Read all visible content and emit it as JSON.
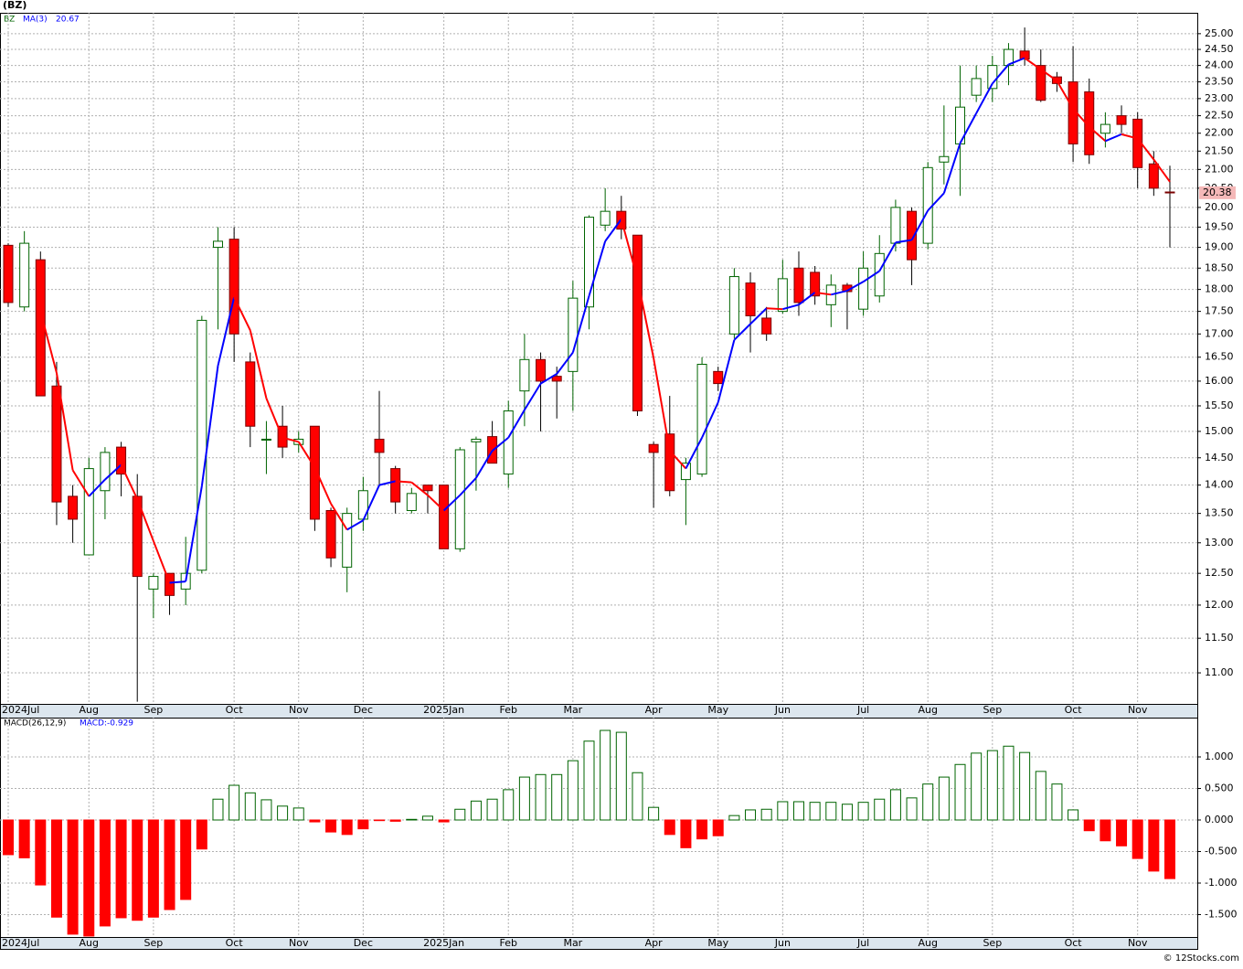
{
  "title": "(BZ)",
  "credit": "© 12Stocks.com",
  "chart_data": [
    {
      "type": "candlestick",
      "name": "BZ",
      "log_scale": true,
      "grid": true,
      "up_color": "#006400",
      "down_color": "#ff0000",
      "categories": [
        "2024Jul",
        null,
        null,
        null,
        null,
        "Aug",
        null,
        null,
        null,
        "Sep",
        null,
        null,
        null,
        null,
        "Oct",
        null,
        null,
        null,
        "Nov",
        null,
        null,
        null,
        "Dec",
        null,
        null,
        null,
        null,
        "2025Jan",
        null,
        null,
        null,
        "Feb",
        null,
        null,
        null,
        "Mar",
        null,
        null,
        null,
        null,
        "Apr",
        null,
        null,
        null,
        "May",
        null,
        null,
        null,
        "Jun",
        null,
        null,
        null,
        null,
        "Jul",
        null,
        null,
        null,
        "Aug",
        null,
        null,
        null,
        "Sep",
        null,
        null,
        null,
        null,
        "Oct",
        null,
        null,
        null,
        "Nov",
        null,
        null
      ],
      "open": [
        19.05,
        17.6,
        18.7,
        15.9,
        13.8,
        12.8,
        13.9,
        14.7,
        13.8,
        12.25,
        12.5,
        12.25,
        12.55,
        19.0,
        19.2,
        16.4,
        14.85,
        15.1,
        14.75,
        15.1,
        13.55,
        12.6,
        13.4,
        14.85,
        14.3,
        13.55,
        14.0,
        14.0,
        12.9,
        14.8,
        14.9,
        14.2,
        15.8,
        16.45,
        16.1,
        16.2,
        17.6,
        19.55,
        19.9,
        19.3,
        14.75,
        14.95,
        14.1,
        14.2,
        16.2,
        17.0,
        18.15,
        17.35,
        17.5,
        18.5,
        18.4,
        17.65,
        18.1,
        17.55,
        17.85,
        19.1,
        19.9,
        19.1,
        21.2,
        21.7,
        23.1,
        23.3,
        24.0,
        24.45,
        24.0,
        23.65,
        23.5,
        23.2,
        22.0,
        22.5,
        22.4,
        21.15,
        20.4
      ],
      "high": [
        19.1,
        19.4,
        18.9,
        16.4,
        14.0,
        14.5,
        14.7,
        14.8,
        14.2,
        12.5,
        12.5,
        13.1,
        17.4,
        19.5,
        19.5,
        16.6,
        15.2,
        15.5,
        15.0,
        15.1,
        13.6,
        13.6,
        14.15,
        15.8,
        14.35,
        13.95,
        14.0,
        14.0,
        14.7,
        14.9,
        15.2,
        15.6,
        17.0,
        16.6,
        16.3,
        18.2,
        19.8,
        20.5,
        20.3,
        19.3,
        14.8,
        15.7,
        14.5,
        16.5,
        16.3,
        18.5,
        18.4,
        17.6,
        18.7,
        18.9,
        18.55,
        18.35,
        18.15,
        18.9,
        19.3,
        20.2,
        20.0,
        21.2,
        22.8,
        24.0,
        24.0,
        24.3,
        24.7,
        25.2,
        24.5,
        23.8,
        24.6,
        23.6,
        22.6,
        22.8,
        22.6,
        21.5,
        21.1
      ],
      "low": [
        17.6,
        17.5,
        15.7,
        13.3,
        13.0,
        12.8,
        13.4,
        13.8,
        10.6,
        11.8,
        11.85,
        12.0,
        12.5,
        17.1,
        16.4,
        14.7,
        14.2,
        14.5,
        14.6,
        13.2,
        12.6,
        12.2,
        13.2,
        14.0,
        13.5,
        13.5,
        13.5,
        12.9,
        12.85,
        13.9,
        14.4,
        13.95,
        15.1,
        15.0,
        15.25,
        15.4,
        17.1,
        19.4,
        19.2,
        15.3,
        13.6,
        13.8,
        13.3,
        14.15,
        15.8,
        16.9,
        16.6,
        16.85,
        17.45,
        17.4,
        17.65,
        17.15,
        17.1,
        17.4,
        17.7,
        18.9,
        18.1,
        18.95,
        20.6,
        20.3,
        22.9,
        22.9,
        23.4,
        24.0,
        22.9,
        23.2,
        21.2,
        21.15,
        21.6,
        22.0,
        20.5,
        20.3,
        19.0
      ],
      "close": [
        17.7,
        19.1,
        15.7,
        13.7,
        13.4,
        14.3,
        14.6,
        14.2,
        12.45,
        12.45,
        12.15,
        12.5,
        17.3,
        19.15,
        17.0,
        15.1,
        14.85,
        14.7,
        14.85,
        13.4,
        12.75,
        13.5,
        13.9,
        14.6,
        13.7,
        13.85,
        13.9,
        12.9,
        14.65,
        14.85,
        14.4,
        15.4,
        16.45,
        16.0,
        16.0,
        17.8,
        19.75,
        19.9,
        19.45,
        15.4,
        14.6,
        13.9,
        14.4,
        16.35,
        15.95,
        18.3,
        17.4,
        17.0,
        18.25,
        17.7,
        17.85,
        18.1,
        17.95,
        18.5,
        18.85,
        20.0,
        18.7,
        21.05,
        21.35,
        22.75,
        23.6,
        24.0,
        24.5,
        24.2,
        22.95,
        23.45,
        21.7,
        21.4,
        22.25,
        22.25,
        21.05,
        20.5,
        20.38
      ],
      "ma": {
        "name": "MA(3)",
        "color": "#0000ff",
        "rising_color": "#0000ff",
        "falling_color": "#ff0000",
        "values": [
          null,
          null,
          17.5,
          16.17,
          14.27,
          13.8,
          14.1,
          14.37,
          13.75,
          13.03,
          12.35,
          12.37,
          13.98,
          16.32,
          17.82,
          17.08,
          15.65,
          14.88,
          14.8,
          14.32,
          13.67,
          13.22,
          13.38,
          14.0,
          14.07,
          14.05,
          13.82,
          13.55,
          13.82,
          14.13,
          14.63,
          14.88,
          15.42,
          15.95,
          16.15,
          16.6,
          17.85,
          19.15,
          19.7,
          18.25,
          16.48,
          14.63,
          14.3,
          14.88,
          15.57,
          16.87,
          17.22,
          17.57,
          17.55,
          17.65,
          17.93,
          17.88,
          17.97,
          18.18,
          18.43,
          19.12,
          19.18,
          19.92,
          20.37,
          21.72,
          22.57,
          23.45,
          24.03,
          24.23,
          23.88,
          23.53,
          22.7,
          22.18,
          21.78,
          21.97,
          21.85,
          21.27,
          20.67
        ]
      },
      "ylim": [
        10.57,
        25.68
      ],
      "yticks": [
        {
          "value": 11,
          "label": "11.00"
        },
        {
          "value": 11.5,
          "label": "11.50"
        },
        {
          "value": 12,
          "label": "12.00"
        },
        {
          "value": 12.5,
          "label": "12.50"
        },
        {
          "value": 13,
          "label": "13.00"
        },
        {
          "value": 13.5,
          "label": "13.50"
        },
        {
          "value": 14,
          "label": "14.00"
        },
        {
          "value": 14.5,
          "label": "14.50"
        },
        {
          "value": 15,
          "label": "15.00"
        },
        {
          "value": 15.5,
          "label": "15.50"
        },
        {
          "value": 16,
          "label": "16.00"
        },
        {
          "value": 16.5,
          "label": "16.50"
        },
        {
          "value": 17,
          "label": "17.00"
        },
        {
          "value": 17.5,
          "label": "17.50"
        },
        {
          "value": 18,
          "label": "18.00"
        },
        {
          "value": 18.5,
          "label": "18.50"
        },
        {
          "value": 19,
          "label": "19.00"
        },
        {
          "value": 19.5,
          "label": "19.50"
        },
        {
          "value": 20,
          "label": "20.00"
        },
        {
          "value": 20.5,
          "label": "20.50"
        },
        {
          "value": 21,
          "label": "21.00"
        },
        {
          "value": 21.5,
          "label": "21.50"
        },
        {
          "value": 22,
          "label": "22.00"
        },
        {
          "value": 22.5,
          "label": "22.50"
        },
        {
          "value": 23,
          "label": "23.00"
        },
        {
          "value": 23.5,
          "label": "23.50"
        },
        {
          "value": 24,
          "label": "24.00"
        },
        {
          "value": 24.5,
          "label": "24.50"
        },
        {
          "value": 25,
          "label": "25.00"
        }
      ]
    },
    {
      "type": "bar",
      "name": "MACD(26,12,9)",
      "current_label": "MACD:-0.929",
      "grid": true,
      "positive_color": "#006400",
      "negative_color": "#ff0000",
      "values": [
        -0.55,
        -0.6,
        -1.03,
        -1.54,
        -1.81,
        -1.84,
        -1.68,
        -1.55,
        -1.59,
        -1.54,
        -1.42,
        -1.26,
        -0.46,
        0.33,
        0.55,
        0.43,
        0.32,
        0.22,
        0.19,
        -0.03,
        -0.19,
        -0.23,
        -0.14,
        -0.01,
        -0.02,
        0.01,
        0.06,
        -0.03,
        0.17,
        0.3,
        0.33,
        0.48,
        0.68,
        0.72,
        0.72,
        0.94,
        1.25,
        1.42,
        1.39,
        0.75,
        0.2,
        -0.23,
        -0.44,
        -0.3,
        -0.25,
        0.07,
        0.16,
        0.17,
        0.29,
        0.29,
        0.28,
        0.28,
        0.25,
        0.28,
        0.33,
        0.48,
        0.35,
        0.57,
        0.68,
        0.88,
        1.06,
        1.1,
        1.17,
        1.07,
        0.77,
        0.57,
        0.16,
        -0.17,
        -0.33,
        -0.41,
        -0.61,
        -0.81,
        -0.929
      ],
      "ylim": [
        -1.855,
        1.623
      ],
      "yticks": [
        {
          "value": -1.5,
          "label": "-1.500"
        },
        {
          "value": -1,
          "label": "-1.000"
        },
        {
          "value": -0.5,
          "label": "-0.500"
        },
        {
          "value": 0,
          "label": "0.000"
        },
        {
          "value": 0.5,
          "label": "0.500"
        },
        {
          "value": 1,
          "label": "1.000"
        }
      ]
    }
  ]
}
